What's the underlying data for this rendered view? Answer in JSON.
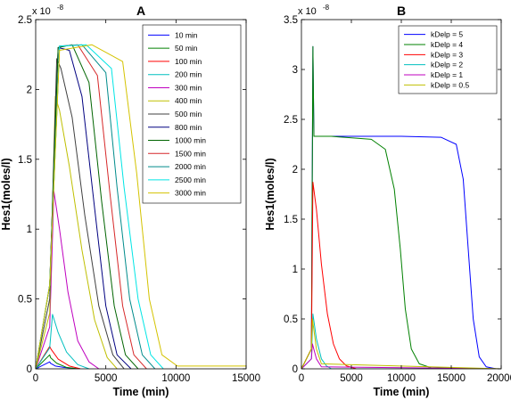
{
  "chart_data": [
    {
      "type": "line",
      "panel_label": "A",
      "xlabel": "Time (min)",
      "ylabel": "Hes1(moles/l)",
      "y_exponent_label": "x 10",
      "y_exponent_power": "-8",
      "xlim": [
        0,
        15000
      ],
      "ylim": [
        0,
        2.5
      ],
      "xticks": [
        0,
        5000,
        10000,
        15000
      ],
      "xtick_labels": [
        "0",
        "5000",
        "10000",
        "15000"
      ],
      "yticks": [
        0,
        0.5,
        1,
        1.5,
        2,
        2.5
      ],
      "ytick_labels": [
        "0",
        "0.5",
        "1",
        "1.5",
        "2",
        "2.5"
      ],
      "grid": false,
      "legend_position": "top-right",
      "series": [
        {
          "name": "10 min",
          "color": "#0000ff",
          "x": [
            0,
            1000,
            1050,
            1400,
            2000,
            3000
          ],
          "y": [
            0,
            0.05,
            0.04,
            0.02,
            0.01,
            0
          ]
        },
        {
          "name": "50 min",
          "color": "#008000",
          "x": [
            0,
            1000,
            1060,
            1500,
            2200,
            3000
          ],
          "y": [
            0,
            0.1,
            0.08,
            0.04,
            0.01,
            0
          ]
        },
        {
          "name": "100 min",
          "color": "#ff0000",
          "x": [
            0,
            1000,
            1100,
            1600,
            2400,
            3200
          ],
          "y": [
            0,
            0.16,
            0.14,
            0.07,
            0.02,
            0
          ]
        },
        {
          "name": "200 min",
          "color": "#00bfbf",
          "x": [
            0,
            1000,
            1200,
            1600,
            2200,
            3000,
            3800
          ],
          "y": [
            0,
            0.15,
            0.39,
            0.26,
            0.12,
            0.03,
            0
          ]
        },
        {
          "name": "300 min",
          "color": "#bf00bf",
          "x": [
            0,
            1000,
            1300,
            1700,
            2300,
            3000,
            3800,
            4500
          ],
          "y": [
            0,
            0.3,
            1.27,
            1.0,
            0.55,
            0.2,
            0.05,
            0
          ]
        },
        {
          "name": "400 min",
          "color": "#bfbf00",
          "x": [
            0,
            1000,
            1400,
            1700,
            2400,
            3300,
            4200,
            5100,
            5800
          ],
          "y": [
            0,
            0.4,
            1.95,
            1.85,
            1.45,
            0.85,
            0.35,
            0.08,
            0
          ]
        },
        {
          "name": "500 min",
          "color": "#404040",
          "x": [
            0,
            1000,
            1500,
            1800,
            2600,
            3500,
            4500,
            5500,
            6300
          ],
          "y": [
            0,
            0.5,
            2.22,
            2.15,
            1.8,
            1.1,
            0.45,
            0.1,
            0
          ]
        },
        {
          "name": "800 min",
          "color": "#000080",
          "x": [
            0,
            1000,
            1600,
            2400,
            3300,
            4200,
            5000,
            5800,
            6800
          ],
          "y": [
            0,
            0.6,
            2.3,
            2.28,
            1.95,
            1.15,
            0.45,
            0.1,
            0
          ]
        },
        {
          "name": "1000 min",
          "color": "#006400",
          "x": [
            0,
            1000,
            1600,
            2600,
            3800,
            4700,
            5600,
            6400,
            7300
          ],
          "y": [
            0,
            0.6,
            2.3,
            2.32,
            2.05,
            1.2,
            0.45,
            0.1,
            0
          ]
        },
        {
          "name": "1500 min",
          "color": "#d62728",
          "x": [
            0,
            1000,
            1700,
            3000,
            4400,
            5300,
            6200,
            7000,
            7900
          ],
          "y": [
            0,
            0.6,
            2.31,
            2.32,
            2.1,
            1.25,
            0.45,
            0.1,
            0
          ]
        },
        {
          "name": "2000 min",
          "color": "#008b8b",
          "x": [
            0,
            1000,
            1700,
            3300,
            5000,
            5800,
            6700,
            7600,
            8500
          ],
          "y": [
            0,
            0.6,
            2.31,
            2.32,
            2.12,
            1.3,
            0.5,
            0.1,
            0
          ]
        },
        {
          "name": "2500 min",
          "color": "#00e5e5",
          "x": [
            0,
            1000,
            1700,
            3600,
            5400,
            6300,
            7300,
            8200,
            9100
          ],
          "y": [
            0,
            0.6,
            2.31,
            2.32,
            2.15,
            1.3,
            0.5,
            0.1,
            0
          ]
        },
        {
          "name": "3000 min",
          "color": "#d4c300",
          "x": [
            0,
            1000,
            1700,
            4000,
            6200,
            7200,
            8100,
            9000,
            10100,
            15000
          ],
          "y": [
            0,
            0.6,
            2.28,
            2.32,
            2.2,
            1.4,
            0.5,
            0.1,
            0.02,
            0.02
          ]
        }
      ]
    },
    {
      "type": "line",
      "panel_label": "B",
      "xlabel": "Time (min)",
      "ylabel": "Hes1(moles/l)",
      "y_exponent_label": "x 10",
      "y_exponent_power": "-8",
      "xlim": [
        0,
        20000
      ],
      "ylim": [
        0,
        3.5
      ],
      "xticks": [
        0,
        5000,
        10000,
        15000,
        20000
      ],
      "xtick_labels": [
        "0",
        "5000",
        "10000",
        "15000",
        "20000"
      ],
      "yticks": [
        0,
        0.5,
        1,
        1.5,
        2,
        2.5,
        3,
        3.5
      ],
      "ytick_labels": [
        "0",
        "0.5",
        "1",
        "1.5",
        "2",
        "2.5",
        "3",
        "3.5"
      ],
      "grid": false,
      "legend_position": "top-right",
      "series": [
        {
          "name": "kDelp = 5",
          "color": "#0000ff",
          "x": [
            0,
            1000,
            1150,
            1250,
            3000,
            10000,
            14000,
            15500,
            16200,
            16700,
            17200,
            17800,
            18500,
            19500,
            20000
          ],
          "y": [
            0,
            0.2,
            3.23,
            2.33,
            2.33,
            2.33,
            2.32,
            2.25,
            1.9,
            1.2,
            0.5,
            0.12,
            0.02,
            0,
            0
          ]
        },
        {
          "name": "kDelp = 4",
          "color": "#008000",
          "x": [
            0,
            1000,
            1150,
            1250,
            3000,
            7000,
            8400,
            9300,
            9900,
            10400,
            11000,
            11800,
            13000,
            20000
          ],
          "y": [
            0,
            0.2,
            3.23,
            2.33,
            2.33,
            2.3,
            2.2,
            1.8,
            1.2,
            0.6,
            0.2,
            0.05,
            0.01,
            0
          ]
        },
        {
          "name": "kDelp = 3",
          "color": "#ff0000",
          "x": [
            0,
            1000,
            1150,
            1500,
            2000,
            2600,
            3200,
            3800,
            4500,
            5500,
            20000
          ],
          "y": [
            0,
            0.2,
            1.87,
            1.6,
            1.05,
            0.55,
            0.25,
            0.1,
            0.03,
            0,
            0
          ]
        },
        {
          "name": "kDelp = 2",
          "color": "#00bfbf",
          "x": [
            0,
            1000,
            1150,
            1500,
            2000,
            2500,
            3000,
            20000
          ],
          "y": [
            0,
            0.1,
            0.55,
            0.3,
            0.1,
            0.03,
            0,
            0
          ]
        },
        {
          "name": "kDelp = 1",
          "color": "#bf00bf",
          "x": [
            0,
            1000,
            1100,
            1500,
            2000,
            20000
          ],
          "y": [
            0,
            0.1,
            0.25,
            0.1,
            0.02,
            0
          ]
        },
        {
          "name": "kDelp = 0.5",
          "color": "#bfbf00",
          "x": [
            0,
            1000,
            1100,
            1500,
            2000,
            20000
          ],
          "y": [
            0,
            0.2,
            0.5,
            0.2,
            0.05,
            0
          ]
        }
      ]
    }
  ]
}
